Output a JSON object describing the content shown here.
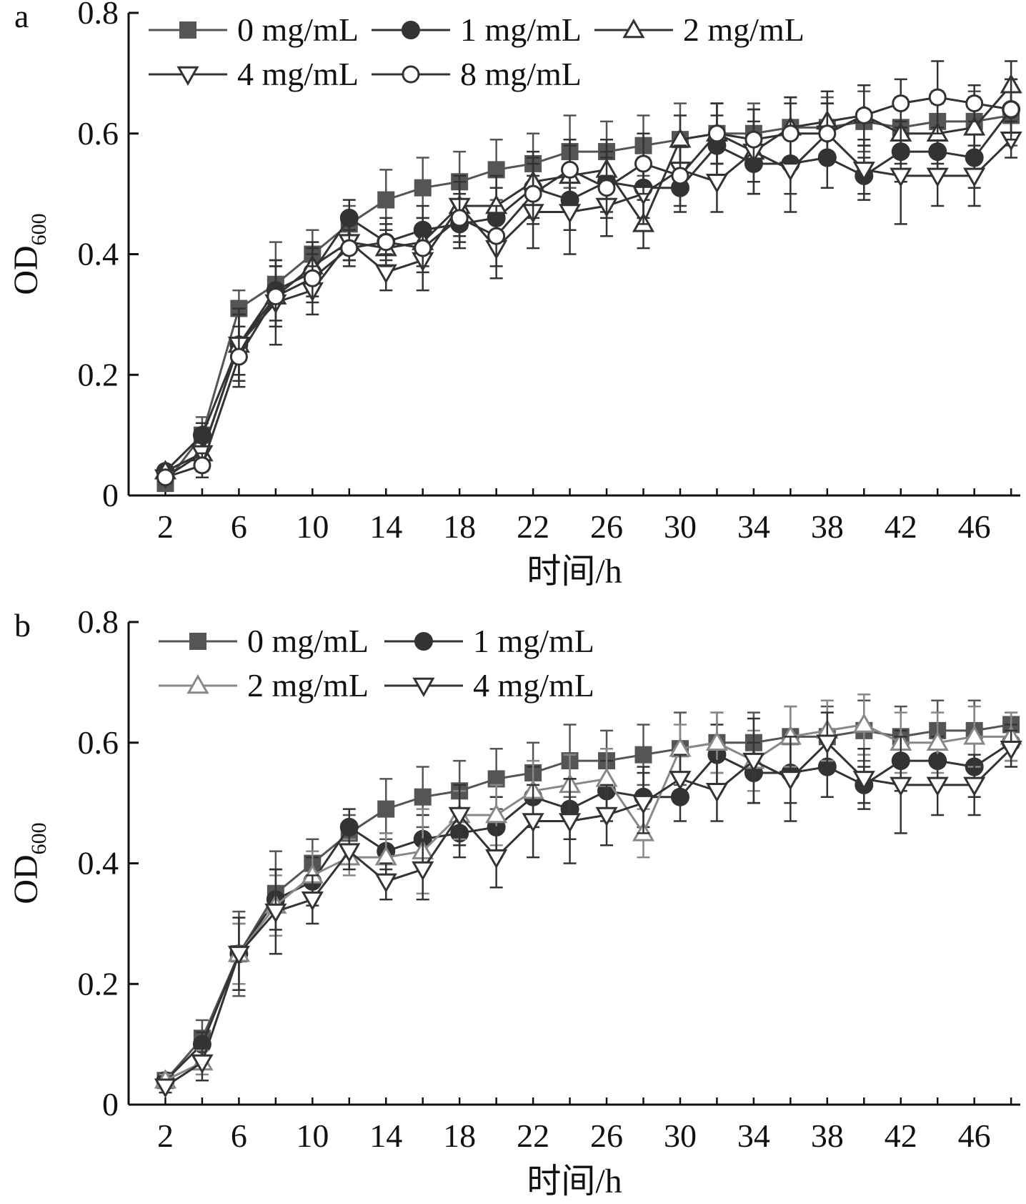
{
  "chart_data": [
    {
      "type": "line",
      "panel_label": "a",
      "xlabel": "时间/h",
      "ylabel": {
        "main": "OD",
        "sub": "600"
      },
      "xlim": [
        0,
        48.5
      ],
      "ylim": [
        0,
        0.8
      ],
      "xticks": [
        "2",
        "6",
        "10",
        "14",
        "18",
        "22",
        "26",
        "30",
        "34",
        "38",
        "42",
        "46"
      ],
      "yticks": [
        "0",
        "0.2",
        "0.4",
        "0.6",
        "0.8"
      ],
      "x": [
        2,
        4,
        6,
        8,
        10,
        12,
        14,
        16,
        18,
        20,
        22,
        24,
        26,
        28,
        30,
        32,
        34,
        36,
        38,
        40,
        42,
        44,
        46,
        48
      ],
      "legend_rows": [
        [
          0,
          1,
          2
        ],
        [
          3,
          4
        ]
      ],
      "series": [
        {
          "name": "0 mg/mL",
          "marker": "square-filled",
          "color": "#555555",
          "values": [
            0.02,
            0.1,
            0.31,
            0.35,
            0.4,
            0.45,
            0.49,
            0.51,
            0.52,
            0.54,
            0.55,
            0.57,
            0.57,
            0.58,
            0.59,
            0.6,
            0.6,
            0.61,
            0.61,
            0.62,
            0.61,
            0.62,
            0.62,
            0.63
          ],
          "errors": [
            0.01,
            0.03,
            0.03,
            0.07,
            0.04,
            0.03,
            0.05,
            0.05,
            0.05,
            0.05,
            0.05,
            0.06,
            0.05,
            0.05,
            0.06,
            0.05,
            0.05,
            0.05,
            0.05,
            0.05,
            0.05,
            0.05,
            0.05,
            0.05
          ]
        },
        {
          "name": "1 mg/mL",
          "marker": "circle-filled",
          "color": "#333333",
          "values": [
            0.04,
            0.1,
            0.25,
            0.34,
            0.37,
            0.46,
            0.42,
            0.44,
            0.45,
            0.46,
            0.51,
            0.49,
            0.52,
            0.51,
            0.51,
            0.58,
            0.55,
            0.55,
            0.56,
            0.53,
            0.57,
            0.57,
            0.56,
            0.64
          ],
          "errors": [
            0.01,
            0.02,
            0.05,
            0.05,
            0.04,
            0.03,
            0.03,
            0.04,
            0.04,
            0.05,
            0.05,
            0.05,
            0.05,
            0.05,
            0.04,
            0.05,
            0.05,
            0.05,
            0.05,
            0.03,
            0.05,
            0.04,
            0.05,
            0.05
          ]
        },
        {
          "name": "2 mg/mL",
          "marker": "triangle-up-open",
          "color": "#333333",
          "values": [
            0.04,
            0.07,
            0.25,
            0.33,
            0.38,
            0.42,
            0.41,
            0.42,
            0.48,
            0.48,
            0.52,
            0.53,
            0.54,
            0.45,
            0.59,
            0.6,
            0.57,
            0.61,
            0.62,
            0.63,
            0.6,
            0.6,
            0.61,
            0.68
          ],
          "errors": [
            0.01,
            0.02,
            0.05,
            0.05,
            0.04,
            0.03,
            0.03,
            0.04,
            0.04,
            0.05,
            0.05,
            0.05,
            0.05,
            0.04,
            0.04,
            0.05,
            0.05,
            0.05,
            0.05,
            0.05,
            0.05,
            0.05,
            0.05,
            0.04
          ]
        },
        {
          "name": "4 mg/mL",
          "marker": "triangle-down-open",
          "color": "#333333",
          "values": [
            0.03,
            0.07,
            0.25,
            0.32,
            0.34,
            0.42,
            0.37,
            0.39,
            0.48,
            0.41,
            0.47,
            0.47,
            0.48,
            0.5,
            0.54,
            0.52,
            0.57,
            0.54,
            0.6,
            0.54,
            0.53,
            0.53,
            0.53,
            0.59
          ],
          "errors": [
            0.01,
            0.03,
            0.06,
            0.07,
            0.04,
            0.03,
            0.03,
            0.05,
            0.05,
            0.05,
            0.06,
            0.07,
            0.05,
            0.05,
            0.04,
            0.05,
            0.07,
            0.07,
            0.05,
            0.05,
            0.08,
            0.05,
            0.05,
            0.03
          ]
        },
        {
          "name": "8 mg/mL",
          "marker": "circle-open",
          "color": "#333333",
          "values": [
            0.03,
            0.05,
            0.23,
            0.33,
            0.36,
            0.41,
            0.42,
            0.41,
            0.46,
            0.43,
            0.5,
            0.54,
            0.51,
            0.55,
            0.53,
            0.6,
            0.59,
            0.6,
            0.6,
            0.63,
            0.65,
            0.66,
            0.65,
            0.64
          ],
          "errors": [
            0.01,
            0.02,
            0.05,
            0.05,
            0.04,
            0.03,
            0.04,
            0.04,
            0.04,
            0.05,
            0.05,
            0.05,
            0.05,
            0.05,
            0.05,
            0.05,
            0.05,
            0.05,
            0.05,
            0.05,
            0.04,
            0.06,
            0.03,
            0.05
          ]
        }
      ]
    },
    {
      "type": "line",
      "panel_label": "b",
      "xlabel": "时间/h",
      "ylabel": {
        "main": "OD",
        "sub": "600"
      },
      "xlim": [
        0,
        48.5
      ],
      "ylim": [
        0,
        0.8
      ],
      "xticks": [
        "2",
        "6",
        "10",
        "14",
        "18",
        "22",
        "26",
        "30",
        "34",
        "38",
        "42",
        "46"
      ],
      "yticks": [
        "0",
        "0.2",
        "0.4",
        "0.6",
        "0.8"
      ],
      "x": [
        2,
        4,
        6,
        8,
        10,
        12,
        14,
        16,
        18,
        20,
        22,
        24,
        26,
        28,
        30,
        32,
        34,
        36,
        38,
        40,
        42,
        44,
        46,
        48
      ],
      "legend_rows": [
        [
          0,
          1
        ],
        [
          2,
          3
        ]
      ],
      "series": [
        {
          "name": "0 mg/mL",
          "marker": "square-filled",
          "color": "#555555",
          "values": [
            0.04,
            0.11,
            0.25,
            0.35,
            0.4,
            0.45,
            0.49,
            0.51,
            0.52,
            0.54,
            0.55,
            0.57,
            0.57,
            0.58,
            0.59,
            0.6,
            0.6,
            0.61,
            0.61,
            0.62,
            0.61,
            0.62,
            0.62,
            0.63
          ],
          "errors": [
            0.01,
            0.03,
            0.07,
            0.07,
            0.04,
            0.03,
            0.05,
            0.05,
            0.05,
            0.05,
            0.05,
            0.06,
            0.05,
            0.05,
            0.06,
            0.05,
            0.05,
            0.05,
            0.05,
            0.05,
            0.05,
            0.05,
            0.05,
            0.02
          ]
        },
        {
          "name": "1 mg/mL",
          "marker": "circle-filled",
          "color": "#333333",
          "values": [
            0.04,
            0.1,
            0.25,
            0.34,
            0.37,
            0.46,
            0.42,
            0.44,
            0.45,
            0.46,
            0.51,
            0.49,
            0.52,
            0.51,
            0.51,
            0.58,
            0.55,
            0.55,
            0.56,
            0.53,
            0.57,
            0.57,
            0.56,
            0.6
          ],
          "errors": [
            0.01,
            0.02,
            0.05,
            0.05,
            0.04,
            0.03,
            0.03,
            0.04,
            0.04,
            0.05,
            0.05,
            0.05,
            0.05,
            0.05,
            0.04,
            0.05,
            0.05,
            0.05,
            0.05,
            0.03,
            0.05,
            0.04,
            0.05,
            0.03
          ]
        },
        {
          "name": "2 mg/mL",
          "marker": "triangle-up-open",
          "color": "#888888",
          "values": [
            0.04,
            0.07,
            0.25,
            0.33,
            0.38,
            0.41,
            0.41,
            0.42,
            0.48,
            0.48,
            0.52,
            0.53,
            0.54,
            0.45,
            0.59,
            0.6,
            0.57,
            0.61,
            0.62,
            0.63,
            0.6,
            0.6,
            0.61,
            0.61
          ],
          "errors": [
            0.01,
            0.02,
            0.05,
            0.05,
            0.04,
            0.03,
            0.04,
            0.07,
            0.04,
            0.05,
            0.05,
            0.05,
            0.05,
            0.04,
            0.04,
            0.05,
            0.05,
            0.05,
            0.05,
            0.05,
            0.05,
            0.05,
            0.05,
            0.04
          ]
        },
        {
          "name": "4 mg/mL",
          "marker": "triangle-down-open",
          "color": "#333333",
          "values": [
            0.03,
            0.07,
            0.25,
            0.32,
            0.34,
            0.42,
            0.37,
            0.39,
            0.48,
            0.41,
            0.47,
            0.47,
            0.48,
            0.5,
            0.54,
            0.52,
            0.57,
            0.54,
            0.6,
            0.54,
            0.53,
            0.53,
            0.53,
            0.59
          ],
          "errors": [
            0.01,
            0.03,
            0.06,
            0.07,
            0.04,
            0.03,
            0.03,
            0.05,
            0.05,
            0.05,
            0.06,
            0.07,
            0.05,
            0.05,
            0.04,
            0.05,
            0.07,
            0.07,
            0.05,
            0.05,
            0.08,
            0.05,
            0.05,
            0.03
          ]
        }
      ]
    }
  ]
}
